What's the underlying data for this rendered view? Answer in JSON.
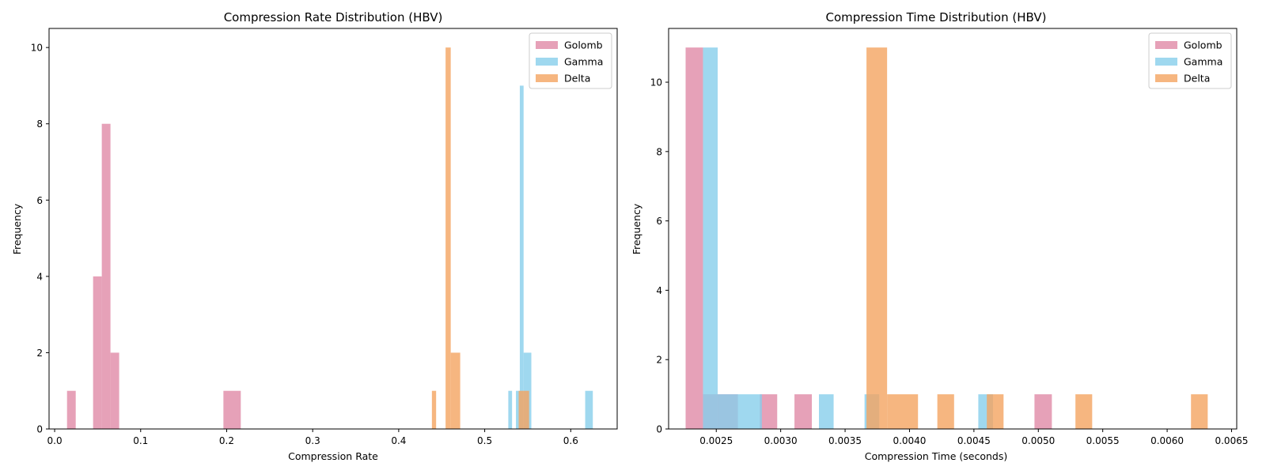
{
  "colors": {
    "Golomb": "#e08aa6",
    "Gamma": "#87ceeb",
    "Delta": "#f4a460"
  },
  "chart_data": [
    {
      "type": "histogram",
      "title": "Compression Rate Distribution (HBV)",
      "xlabel": "Compression Rate",
      "ylabel": "Frequency",
      "xlim": [
        -0.0065,
        0.654
      ],
      "ylim": [
        0,
        10.5
      ],
      "xticks": [
        0.0,
        0.1,
        0.2,
        0.3,
        0.4,
        0.5,
        0.6
      ],
      "xtick_labels": [
        "0.0",
        "0.1",
        "0.2",
        "0.3",
        "0.4",
        "0.5",
        "0.6"
      ],
      "yticks": [
        0,
        2,
        4,
        6,
        8,
        10
      ],
      "ytick_labels": [
        "0",
        "2",
        "4",
        "6",
        "8",
        "10"
      ],
      "bar_alpha": 0.8,
      "legend": {
        "loc": "upper right"
      },
      "series": [
        {
          "name": "Golomb",
          "bins": [
            {
              "x0": 0.0144,
              "x1": 0.0245,
              "count": 1
            },
            {
              "x0": 0.0447,
              "x1": 0.0548,
              "count": 4
            },
            {
              "x0": 0.0548,
              "x1": 0.0649,
              "count": 8
            },
            {
              "x0": 0.0649,
              "x1": 0.075,
              "count": 2
            },
            {
              "x0": 0.1962,
              "x1": 0.2164,
              "count": 1
            }
          ]
        },
        {
          "name": "Gamma",
          "bins": [
            {
              "x0": 0.5274,
              "x1": 0.5318,
              "count": 1
            },
            {
              "x0": 0.5363,
              "x1": 0.5408,
              "count": 1
            },
            {
              "x0": 0.5408,
              "x1": 0.5452,
              "count": 9
            },
            {
              "x0": 0.5452,
              "x1": 0.5542,
              "count": 2
            },
            {
              "x0": 0.6168,
              "x1": 0.6257,
              "count": 1
            }
          ]
        },
        {
          "name": "Delta",
          "bins": [
            {
              "x0": 0.4386,
              "x1": 0.4435,
              "count": 1
            },
            {
              "x0": 0.4545,
              "x1": 0.4605,
              "count": 10
            },
            {
              "x0": 0.4605,
              "x1": 0.4715,
              "count": 2
            },
            {
              "x0": 0.5395,
              "x1": 0.5516,
              "count": 1
            }
          ]
        }
      ]
    },
    {
      "type": "histogram",
      "title": "Compression Time Distribution (HBV)",
      "xlabel": "Compression Time (seconds)",
      "ylabel": "Frequency",
      "xlim": [
        0.00213,
        0.00654
      ],
      "ylim": [
        0,
        11.55
      ],
      "xticks": [
        0.0025,
        0.003,
        0.0035,
        0.004,
        0.0045,
        0.005,
        0.0055,
        0.006,
        0.0065
      ],
      "xtick_labels": [
        "0.0025",
        "0.0030",
        "0.0035",
        "0.0040",
        "0.0045",
        "0.0050",
        "0.0055",
        "0.0060",
        "0.0065"
      ],
      "yticks": [
        0,
        2,
        4,
        6,
        8,
        10
      ],
      "ytick_labels": [
        "0",
        "2",
        "4",
        "6",
        "8",
        "10"
      ],
      "bar_alpha": 0.8,
      "legend": {
        "loc": "upper right"
      },
      "series": [
        {
          "name": "Golomb",
          "bins": [
            {
              "x0": 0.002262,
              "x1": 0.002397,
              "count": 11
            },
            {
              "x0": 0.002397,
              "x1": 0.002668,
              "count": 1
            },
            {
              "x0": 0.002838,
              "x1": 0.002973,
              "count": 1
            },
            {
              "x0": 0.003107,
              "x1": 0.003242,
              "count": 1
            },
            {
              "x0": 0.00497,
              "x1": 0.005105,
              "count": 1
            }
          ]
        },
        {
          "name": "Gamma",
          "bins": [
            {
              "x0": 0.002397,
              "x1": 0.002511,
              "count": 11
            },
            {
              "x0": 0.002511,
              "x1": 0.002854,
              "count": 1
            },
            {
              "x0": 0.003297,
              "x1": 0.003411,
              "count": 1
            },
            {
              "x0": 0.003651,
              "x1": 0.003765,
              "count": 1
            },
            {
              "x0": 0.004534,
              "x1": 0.004648,
              "count": 1
            }
          ]
        },
        {
          "name": "Delta",
          "bins": [
            {
              "x0": 0.003666,
              "x1": 0.003826,
              "count": 11
            },
            {
              "x0": 0.003826,
              "x1": 0.004066,
              "count": 1
            },
            {
              "x0": 0.004216,
              "x1": 0.004346,
              "count": 1
            },
            {
              "x0": 0.0046,
              "x1": 0.00473,
              "count": 1
            },
            {
              "x0": 0.005288,
              "x1": 0.005418,
              "count": 1
            },
            {
              "x0": 0.006185,
              "x1": 0.006315,
              "count": 1
            }
          ]
        }
      ]
    }
  ]
}
